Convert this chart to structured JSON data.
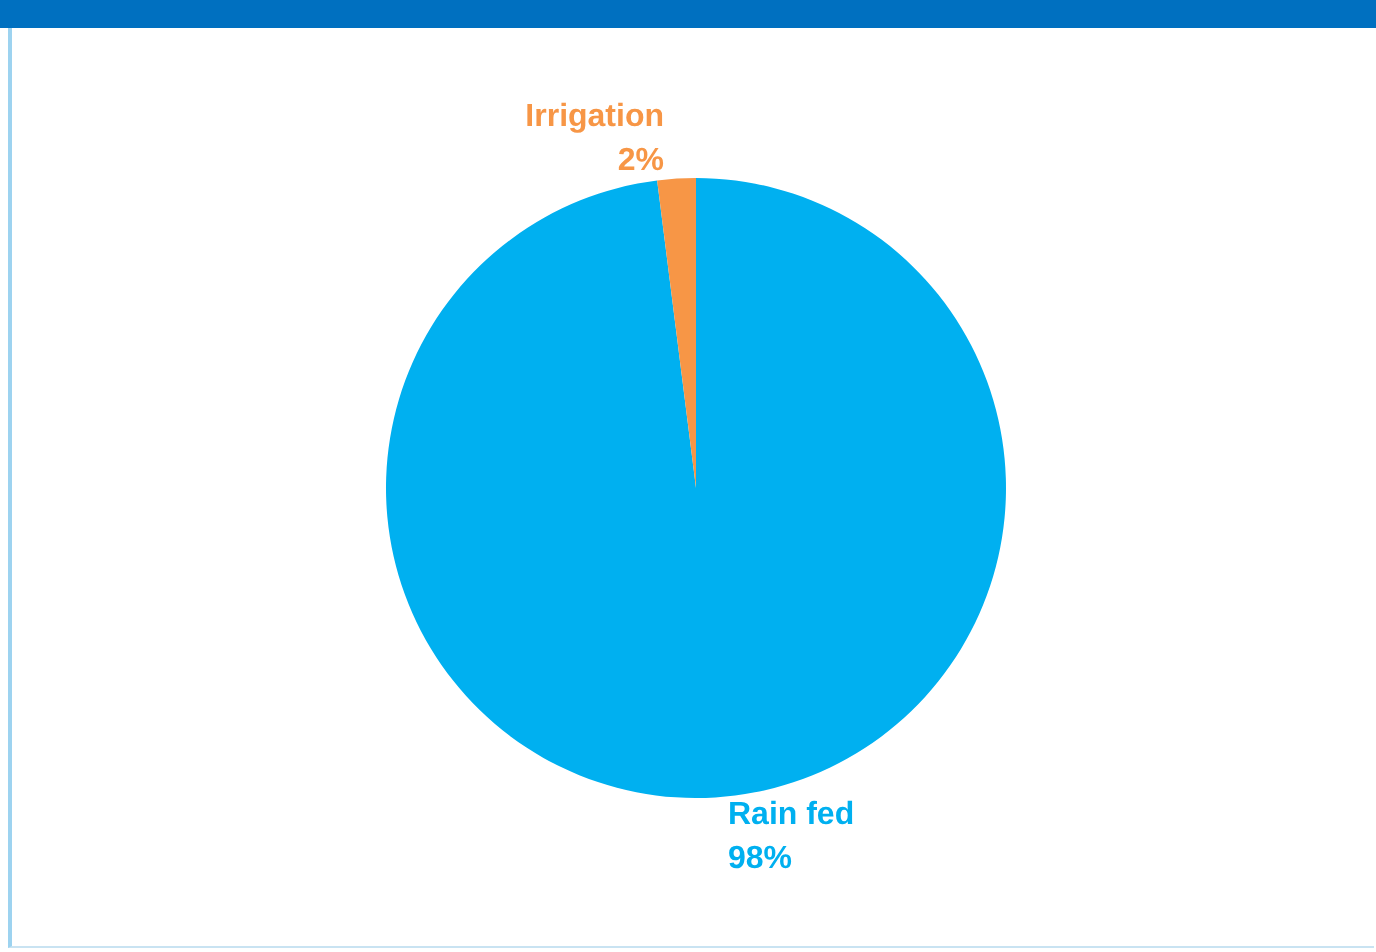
{
  "chart_data": {
    "type": "pie",
    "categories": [
      "Rain fed",
      "Irrigation"
    ],
    "values": [
      98,
      2
    ],
    "value_labels": [
      "98%",
      "2%"
    ],
    "colors": [
      "#00b0f0",
      "#f79646"
    ]
  }
}
